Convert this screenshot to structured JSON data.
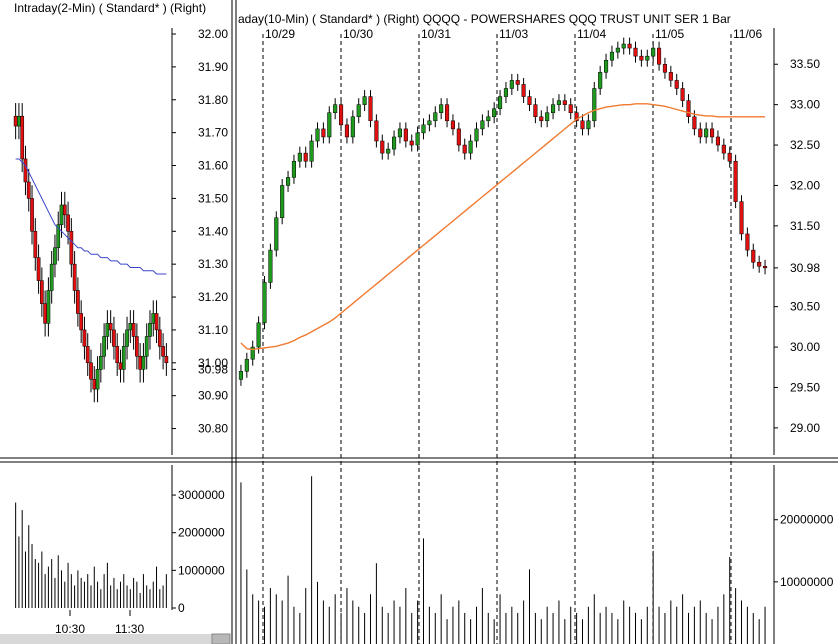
{
  "left_panel": {
    "header": "Intraday(2-Min) ( Standard* )   (Right)",
    "price_ticks": [
      "32.00",
      "31.90",
      "31.80",
      "31.70",
      "31.60",
      "31.50",
      "31.40",
      "31.30",
      "31.20",
      "31.10",
      "31.00",
      "30.98",
      "30.90",
      "30.80"
    ],
    "price_tick_values": [
      32.0,
      31.9,
      31.8,
      31.7,
      31.6,
      31.5,
      31.4,
      31.3,
      31.2,
      31.1,
      31.0,
      30.98,
      30.9,
      30.8
    ],
    "volume_ticks": [
      "3000000",
      "2000000",
      "1000000",
      "0"
    ],
    "time_labels": [
      "10:30",
      "11:30"
    ]
  },
  "right_panel": {
    "header": "aday(10-Min) ( Standard* )   (Right)   QQQQ - POWERSHARES QQQ TRUST UNIT SER 1   Bar",
    "date_labels": [
      "10/29",
      "10/30",
      "10/31",
      "11/03",
      "11/04",
      "11/05",
      "11/06"
    ],
    "price_ticks": [
      "33.50",
      "33.00",
      "32.50",
      "32.00",
      "31.50",
      "30.98",
      "30.50",
      "30.00",
      "29.50",
      "29.00"
    ],
    "price_tick_values": [
      33.5,
      33.0,
      32.5,
      32.0,
      31.5,
      30.98,
      30.5,
      30.0,
      29.5,
      29.0
    ],
    "volume_ticks": [
      "20000000",
      "10000000"
    ]
  },
  "chart_data": [
    {
      "type": "candlestick",
      "xlabel": "",
      "ylabel": "",
      "ylim": [
        30.75,
        32.0
      ],
      "ma_color": "#3a46c8",
      "up_color": "#1f9a1f",
      "down_color": "#e01010",
      "closes": [
        31.72,
        31.75,
        31.62,
        31.55,
        31.5,
        31.4,
        31.32,
        31.25,
        31.18,
        31.12,
        31.22,
        31.3,
        31.35,
        31.42,
        31.48,
        31.45,
        31.4,
        31.3,
        31.22,
        31.15,
        31.1,
        31.05,
        31.0,
        30.95,
        30.92,
        30.98,
        31.02,
        31.08,
        31.12,
        31.1,
        31.05,
        31.0,
        30.98,
        31.05,
        31.1,
        31.12,
        31.08,
        31.02,
        30.98,
        31.02,
        31.08,
        31.12,
        31.15,
        31.1,
        31.05,
        31.02,
        31.0
      ],
      "ma": [
        31.62,
        31.62,
        31.61,
        31.6,
        31.58,
        31.56,
        31.54,
        31.52,
        31.5,
        31.48,
        31.46,
        31.44,
        31.42,
        31.41,
        31.4,
        31.39,
        31.38,
        31.37,
        31.36,
        31.35,
        31.35,
        31.34,
        31.34,
        31.33,
        31.33,
        31.33,
        31.32,
        31.32,
        31.32,
        31.31,
        31.31,
        31.31,
        31.3,
        31.3,
        31.3,
        31.29,
        31.29,
        31.29,
        31.29,
        31.28,
        31.28,
        31.28,
        31.28,
        31.27,
        31.27,
        31.27,
        31.27
      ],
      "volume": [
        2800000,
        1900000,
        2600000,
        1500000,
        2200000,
        1700000,
        1300000,
        1200000,
        1500000,
        900000,
        1100000,
        1300000,
        800000,
        1400000,
        1000000,
        700000,
        1200000,
        900000,
        600000,
        1000000,
        800000,
        700000,
        900000,
        600000,
        1100000,
        700000,
        500000,
        900000,
        1200000,
        600000,
        800000,
        500000,
        700000,
        900000,
        600000,
        500000,
        800000,
        700000,
        400000,
        900000,
        600000,
        500000,
        700000,
        1100000,
        500000,
        600000,
        900000
      ]
    },
    {
      "type": "candlestick",
      "title": "QQQQ - POWERSHARES QQQ TRUST UNIT SER 1",
      "xlabel": "",
      "ylabel": "",
      "ylim": [
        28.85,
        33.8
      ],
      "ma_color": "#f07a30",
      "up_color": "#1f9a1f",
      "down_color": "#e01010",
      "sessions": [
        "10/29",
        "10/30",
        "10/31",
        "11/03",
        "11/04",
        "11/05",
        "11/06"
      ],
      "closes": [
        29.7,
        29.85,
        30.0,
        30.3,
        30.8,
        31.2,
        31.6,
        32.0,
        32.1,
        32.3,
        32.4,
        32.3,
        32.55,
        32.7,
        32.6,
        32.9,
        33.0,
        32.75,
        32.6,
        32.85,
        33.0,
        33.1,
        32.8,
        32.55,
        32.4,
        32.45,
        32.6,
        32.7,
        32.55,
        32.5,
        32.65,
        32.75,
        32.8,
        32.9,
        33.0,
        32.8,
        32.7,
        32.5,
        32.4,
        32.55,
        32.7,
        32.8,
        32.85,
        32.95,
        33.1,
        33.2,
        33.3,
        33.25,
        33.1,
        33.0,
        32.85,
        32.8,
        32.9,
        33.0,
        33.05,
        33.0,
        32.9,
        32.8,
        32.7,
        32.8,
        33.2,
        33.4,
        33.55,
        33.65,
        33.7,
        33.75,
        33.7,
        33.6,
        33.55,
        33.6,
        33.7,
        33.5,
        33.4,
        33.3,
        33.2,
        33.05,
        32.85,
        32.7,
        32.6,
        32.7,
        32.6,
        32.5,
        32.4,
        32.3,
        31.8,
        31.4,
        31.2,
        31.05,
        31.0,
        30.98
      ],
      "ma": [
        30.05,
        29.98,
        29.97,
        29.98,
        29.99,
        30.0,
        30.01,
        30.03,
        30.05,
        30.08,
        30.12,
        30.15,
        30.19,
        30.23,
        30.27,
        30.31,
        30.36,
        30.42,
        30.48,
        30.54,
        30.6,
        30.66,
        30.72,
        30.78,
        30.84,
        30.9,
        30.96,
        31.02,
        31.08,
        31.14,
        31.2,
        31.26,
        31.32,
        31.38,
        31.44,
        31.5,
        31.56,
        31.62,
        31.68,
        31.74,
        31.8,
        31.86,
        31.92,
        31.98,
        32.04,
        32.1,
        32.16,
        32.22,
        32.28,
        32.34,
        32.4,
        32.46,
        32.52,
        32.58,
        32.64,
        32.7,
        32.76,
        32.82,
        32.86,
        32.9,
        32.93,
        32.95,
        32.97,
        32.98,
        32.99,
        33.0,
        33.0,
        33.01,
        33.01,
        33.01,
        33.0,
        32.99,
        32.98,
        32.96,
        32.94,
        32.92,
        32.9,
        32.88,
        32.87,
        32.86,
        32.86,
        32.85,
        32.85,
        32.85,
        32.85,
        32.85,
        32.85,
        32.85,
        32.85,
        32.85
      ],
      "volume": [
        26000000,
        12000000,
        8000000,
        7000000,
        6000000,
        9000000,
        8000000,
        7000000,
        11000000,
        6000000,
        5000000,
        9000000,
        27000000,
        10000000,
        7000000,
        6000000,
        8000000,
        5000000,
        9000000,
        7000000,
        6000000,
        5000000,
        8000000,
        13000000,
        6000000,
        5000000,
        7000000,
        6000000,
        9000000,
        5000000,
        7000000,
        17000000,
        6000000,
        5000000,
        8000000,
        4000000,
        6000000,
        7000000,
        5000000,
        4000000,
        6000000,
        9000000,
        5000000,
        4000000,
        8000000,
        5000000,
        6000000,
        5000000,
        7000000,
        12000000,
        5000000,
        4000000,
        6000000,
        5000000,
        7000000,
        4000000,
        6000000,
        5000000,
        4000000,
        6000000,
        8000000,
        5000000,
        6000000,
        5000000,
        4000000,
        7000000,
        6000000,
        5000000,
        4000000,
        6000000,
        15000000,
        6000000,
        5000000,
        7000000,
        6000000,
        8000000,
        5000000,
        6000000,
        7000000,
        5000000,
        4000000,
        6000000,
        8000000,
        14000000,
        9000000,
        7000000,
        6000000,
        5000000,
        4000000,
        6000000
      ]
    }
  ]
}
